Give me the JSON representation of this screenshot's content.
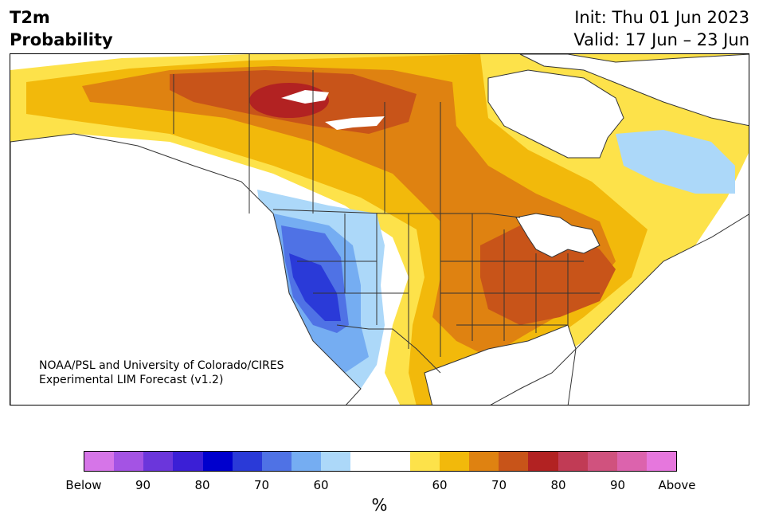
{
  "title": {
    "variable": "T2m",
    "subtitle": "Probability",
    "init": "Init: Thu 01 Jun 2023",
    "valid": "Valid: 17 Jun – 23 Jun"
  },
  "credit": {
    "line1": "NOAA/PSL and University of Colorado/CIRES",
    "line2": "Experimental LIM Forecast (v1.2)"
  },
  "colorbar": {
    "unit": "%",
    "colors": [
      "#d675e8",
      "#a453e4",
      "#6b36db",
      "#3b1fd6",
      "#0000cd",
      "#2a3ad8",
      "#4f72e5",
      "#75adf2",
      "#acd8f9",
      "#ffffff",
      "#ffffff",
      "#fde24a",
      "#f2b90b",
      "#df8211",
      "#c85419",
      "#b22222",
      "#c13b55",
      "#d0527e",
      "#dc63ad",
      "#e677dd"
    ],
    "labels": [
      "Below",
      "90",
      "80",
      "70",
      "60",
      "60",
      "70",
      "80",
      "90",
      "Above"
    ]
  },
  "map": {
    "legend_colors": {
      "cold_light": "#acd8f9",
      "cold_mid": "#75adf2",
      "cold_strong": "#4f72e5",
      "cold_stronger": "#2a3ad8",
      "warm_light": "#fde24a",
      "warm_mid": "#f2b90b",
      "warm_strong": "#df8211",
      "warm_stronger": "#c85419",
      "warm_max": "#b22222",
      "borders": "#333333"
    }
  }
}
